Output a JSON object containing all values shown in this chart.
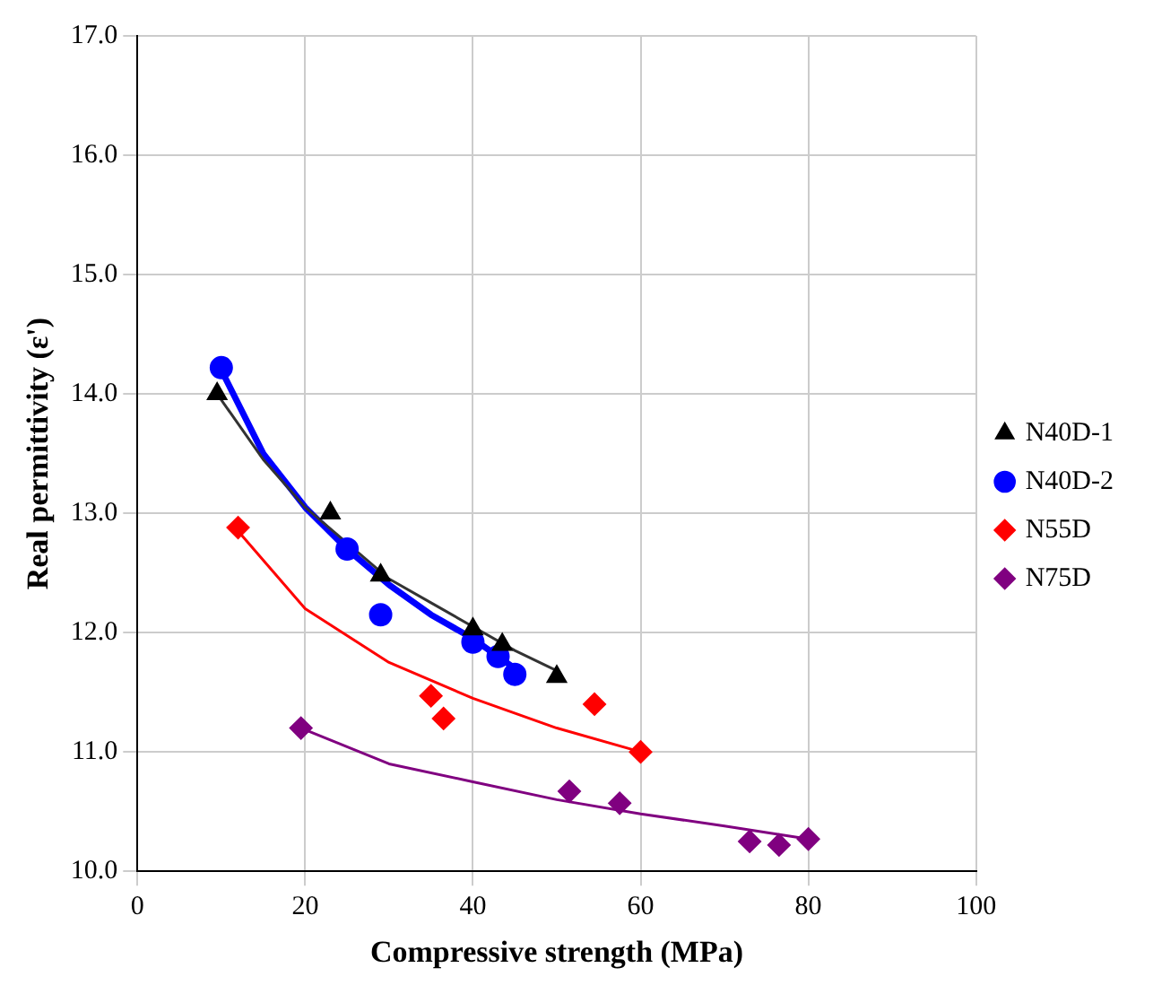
{
  "chart_data": {
    "type": "scatter",
    "xlabel": "Compressive strength (MPa)",
    "ylabel": "Real permittivity (ε')",
    "xlim": [
      0,
      100
    ],
    "xticks": [
      0,
      20,
      40,
      60,
      80,
      100
    ],
    "ylim": [
      10,
      17
    ],
    "yticks": [
      {
        "value": 10,
        "label": "10.0"
      },
      {
        "value": 11,
        "label": "11.0"
      },
      {
        "value": 12,
        "label": "12.0"
      },
      {
        "value": 13,
        "label": "13.0"
      },
      {
        "value": 14,
        "label": "14.0"
      },
      {
        "value": 15,
        "label": "15.0"
      },
      {
        "value": 16,
        "label": "16.0"
      },
      {
        "value": 17,
        "label": "17.0"
      }
    ],
    "grid": true,
    "legend": "right",
    "series": [
      {
        "name": "N40D-1",
        "color": "#000000",
        "marker": "triangle",
        "x": [
          9.5,
          23,
          29,
          40,
          43.5,
          50
        ],
        "values": [
          14.0,
          13.0,
          12.48,
          12.03,
          11.9,
          11.63
        ]
      },
      {
        "name": "N40D-2",
        "color": "#0000ff",
        "marker": "circle",
        "x": [
          10,
          25,
          29,
          40,
          43,
          45
        ],
        "values": [
          14.22,
          12.7,
          12.15,
          11.92,
          11.8,
          11.65
        ]
      },
      {
        "name": "N55D",
        "color": "#ff0000",
        "marker": "diamond",
        "x": [
          12,
          35,
          36.5,
          54.5,
          60
        ],
        "values": [
          12.88,
          11.47,
          11.28,
          11.4,
          11.0
        ]
      },
      {
        "name": "N75D",
        "color": "#800080",
        "marker": "diamond",
        "x": [
          19.5,
          51.5,
          57.5,
          73,
          76.5,
          80
        ],
        "values": [
          11.2,
          10.67,
          10.57,
          10.25,
          10.22,
          10.27
        ]
      },
      {
        "type": "line",
        "color": "#333333",
        "marker": "none",
        "x": [
          9.5,
          15,
          20,
          25,
          30,
          35,
          40,
          45,
          50
        ],
        "values": [
          14.0,
          13.45,
          13.05,
          12.75,
          12.45,
          12.25,
          12.05,
          11.85,
          11.68
        ]
      },
      {
        "type": "line",
        "color": "#0000ff",
        "marker": "none",
        "x": [
          10,
          15,
          20,
          25,
          30,
          35,
          40,
          45
        ],
        "values": [
          14.2,
          13.5,
          13.05,
          12.7,
          12.4,
          12.15,
          11.95,
          11.7
        ]
      },
      {
        "type": "line",
        "color": "#ff0000",
        "marker": "none",
        "x": [
          12,
          20,
          30,
          40,
          50,
          60
        ],
        "values": [
          12.85,
          12.2,
          11.75,
          11.45,
          11.2,
          11.0
        ]
      },
      {
        "type": "line",
        "color": "#800080",
        "marker": "none",
        "x": [
          19.5,
          30,
          40,
          50,
          60,
          70,
          80
        ],
        "values": [
          11.2,
          10.9,
          10.75,
          10.6,
          10.48,
          10.38,
          10.27
        ]
      }
    ]
  }
}
